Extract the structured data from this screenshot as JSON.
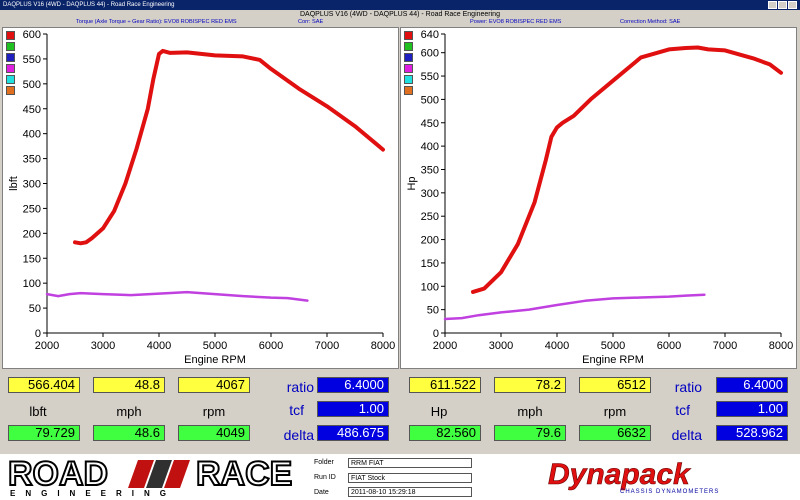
{
  "window": {
    "title": "DAQPLUS V16 (4WD - DAQPLUS 44) - Road Race Engineering"
  },
  "header": {
    "title": "DAQPLUS V16 (4WD - DAQPLUS 44) - Road Race Engineering",
    "left_sub": {
      "measure": "Torque (Axle Torque ÷ Gear Ratio): EVO8 ROBISPEC RED EMS",
      "corr": "Corr: SAE"
    },
    "right_sub": {
      "measure": "Power: EVO8 ROBISPEC RED EMS",
      "corr": "Correction Method: SAE"
    }
  },
  "colors": {
    "series_primary": "#e01010",
    "series_secondary": "#c040e0",
    "value_yellow": "#ffff40",
    "value_green": "#40ff40",
    "value_blue": "#0000e0"
  },
  "swatches": [
    "#e01010",
    "#20c020",
    "#2020c0",
    "#e020e0",
    "#20e0e0",
    "#e07020"
  ],
  "chart_data": [
    {
      "type": "line",
      "title": "",
      "xlabel": "Engine RPM",
      "ylabel": "lbft",
      "xlim": [
        2000,
        8000
      ],
      "ylim": [
        0,
        600
      ],
      "xticks": [
        2000,
        3000,
        4000,
        5000,
        6000,
        7000,
        8000
      ],
      "yticks": [
        0,
        50,
        100,
        150,
        200,
        250,
        300,
        350,
        400,
        450,
        500,
        550,
        600
      ],
      "grid": false,
      "series": [
        {
          "color": "#e01010",
          "x": [
            2500,
            2600,
            2700,
            2800,
            3000,
            3200,
            3400,
            3600,
            3800,
            3900,
            4000,
            4067,
            4200,
            4500,
            5000,
            5500,
            5800,
            6000,
            6500,
            7000,
            7500,
            8000
          ],
          "y": [
            182,
            180,
            182,
            190,
            210,
            245,
            300,
            370,
            450,
            510,
            560,
            566,
            562,
            563,
            557,
            555,
            548,
            530,
            490,
            455,
            415,
            368
          ]
        },
        {
          "color": "#c040e0",
          "x": [
            2000,
            2200,
            2400,
            2600,
            3000,
            3500,
            4000,
            4500,
            5000,
            5500,
            6000,
            6300,
            6650
          ],
          "y": [
            78,
            74,
            78,
            80,
            78,
            76,
            79,
            82,
            78,
            74,
            71,
            70,
            65
          ]
        }
      ]
    },
    {
      "type": "line",
      "title": "",
      "xlabel": "Engine RPM",
      "ylabel": "Hp",
      "xlim": [
        2000,
        8000
      ],
      "ylim": [
        0,
        640
      ],
      "xticks": [
        2000,
        3000,
        4000,
        5000,
        6000,
        7000,
        8000
      ],
      "yticks": [
        0,
        50,
        100,
        150,
        200,
        250,
        300,
        350,
        400,
        450,
        500,
        550,
        600,
        640
      ],
      "grid": false,
      "series": [
        {
          "color": "#e01010",
          "x": [
            2500,
            2700,
            3000,
            3300,
            3600,
            3800,
            3900,
            4000,
            4100,
            4300,
            4600,
            5000,
            5500,
            6000,
            6300,
            6512,
            6700,
            7000,
            7500,
            7800,
            8000
          ],
          "y": [
            88,
            95,
            130,
            190,
            280,
            370,
            420,
            440,
            450,
            465,
            500,
            540,
            590,
            607,
            610,
            611,
            607,
            605,
            588,
            575,
            557
          ]
        },
        {
          "color": "#c040e0",
          "x": [
            2000,
            2300,
            2600,
            3000,
            3500,
            4000,
            4500,
            5000,
            5500,
            6000,
            6300,
            6632
          ],
          "y": [
            30,
            32,
            38,
            44,
            50,
            60,
            69,
            74,
            76,
            78,
            80,
            82
          ]
        }
      ]
    }
  ],
  "left_readouts": {
    "top": [
      "566.404",
      "48.8",
      "4067"
    ],
    "units": [
      "lbft",
      "mph",
      "rpm"
    ],
    "bottom": [
      "79.729",
      "48.6",
      "4049"
    ],
    "labels": [
      "ratio",
      "tcf",
      "delta"
    ],
    "values": [
      "6.4000",
      "1.00",
      "486.675"
    ]
  },
  "right_readouts": {
    "top": [
      "611.522",
      "78.2",
      "6512"
    ],
    "units": [
      "Hp",
      "mph",
      "rpm"
    ],
    "bottom": [
      "82.560",
      "79.6",
      "6632"
    ],
    "labels": [
      "ratio",
      "tcf",
      "delta"
    ],
    "values": [
      "6.4000",
      "1.00",
      "528.962"
    ]
  },
  "footer": {
    "logo_left": {
      "word1": "ROAD",
      "word2": "RACE",
      "sub": "ENGINEERING"
    },
    "info": [
      {
        "label": "Folder",
        "value": "RRM FIAT"
      },
      {
        "label": "Run ID",
        "value": "FIAT Stock"
      },
      {
        "label": "Date",
        "value": "2011-08-10 15:29:18"
      }
    ],
    "logo_right": {
      "brand": "Dynapack",
      "sub": "CHASSIS DYNAMOMETERS"
    }
  }
}
